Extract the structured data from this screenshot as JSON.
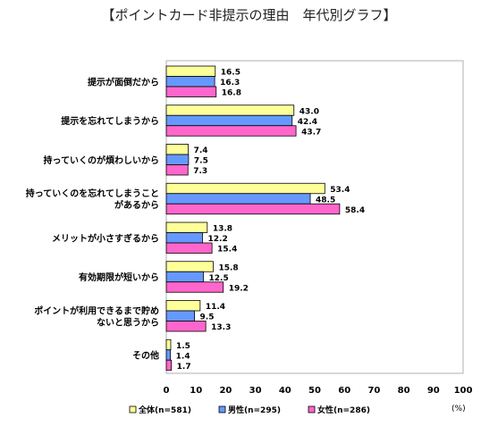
{
  "chart_data": {
    "type": "bar",
    "orientation": "horizontal",
    "title": "【ポイントカード非提示の理由　年代別グラフ】",
    "unit": "(%)",
    "categories": [
      [
        "提示が面倒だから"
      ],
      [
        "提示を忘れてしまうから"
      ],
      [
        "持っていくのが煩わしいから"
      ],
      [
        "持っていくのを忘れてしまうこと",
        "があるから"
      ],
      [
        "メリットが小さすぎるから"
      ],
      [
        "有効期限が短いから"
      ],
      [
        "ポイントが利用できるまで貯め",
        "ないと思うから"
      ],
      [
        "その他"
      ]
    ],
    "series": [
      {
        "name": "全体(n=581)",
        "color": "#ffff99",
        "values": [
          16.5,
          43.0,
          7.4,
          53.4,
          13.8,
          15.8,
          11.4,
          1.5
        ],
        "labels": [
          "16.5",
          "43.0",
          "7.4",
          "53.4",
          "13.8",
          "15.8",
          "11.4",
          "1.5"
        ]
      },
      {
        "name": "男性(n=295)",
        "color": "#6699ff",
        "values": [
          16.3,
          42.4,
          7.5,
          48.5,
          12.2,
          12.5,
          9.5,
          1.4
        ],
        "labels": [
          "16.3",
          "42.4",
          "7.5",
          "48.5",
          "12.2",
          "12.5",
          "9.5",
          "1.4"
        ]
      },
      {
        "name": "女性(n=286)",
        "color": "#ff66cc",
        "values": [
          16.8,
          43.7,
          7.3,
          58.4,
          15.4,
          19.2,
          13.3,
          1.7
        ],
        "labels": [
          "16.8",
          "43.7",
          "7.3",
          "58.4",
          "15.4",
          "19.2",
          "13.3",
          "1.7"
        ]
      }
    ],
    "xlim": [
      0,
      100
    ],
    "ticks": [
      "0",
      "10",
      "20",
      "30",
      "40",
      "50",
      "60",
      "70",
      "80",
      "90",
      "100"
    ],
    "legend_position": "bottom",
    "grid": false
  }
}
